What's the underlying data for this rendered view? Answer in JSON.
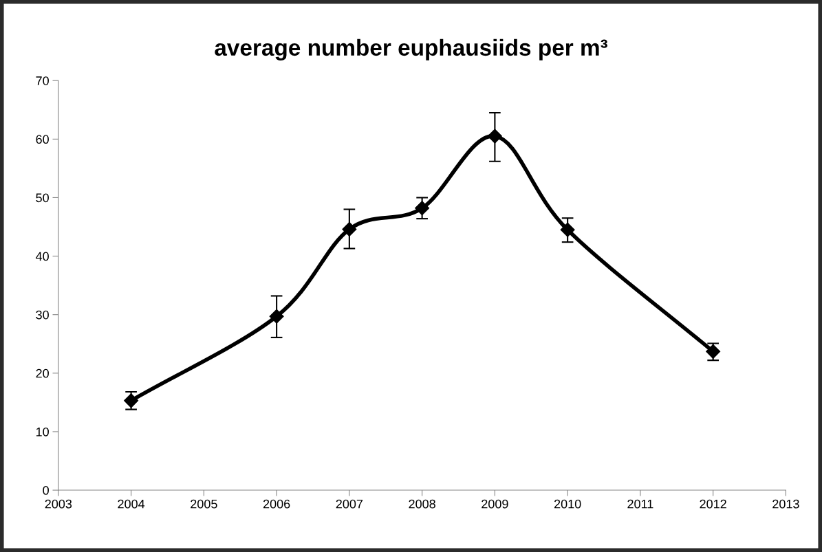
{
  "chart_data": {
    "type": "line",
    "title": "average number euphausiids per m³",
    "x": [
      2004,
      2006,
      2007,
      2008,
      2009,
      2010,
      2012
    ],
    "series": [
      {
        "color": "#000000",
        "values": [
          15.3,
          29.7,
          44.6,
          48.2,
          60.5,
          44.5,
          23.7
        ],
        "errors": [
          [
            13.8,
            16.8
          ],
          [
            26.1,
            33.2
          ],
          [
            41.3,
            48.0
          ],
          [
            46.4,
            50.0
          ],
          [
            56.2,
            64.5
          ],
          [
            42.4,
            46.5
          ],
          [
            22.2,
            25.1
          ]
        ]
      }
    ],
    "marker": "diamond",
    "line_style": "solid",
    "xlim": [
      2003,
      2013
    ],
    "xticks": [
      2003,
      2004,
      2005,
      2006,
      2007,
      2008,
      2009,
      2010,
      2011,
      2012,
      2013
    ],
    "ylim": [
      0,
      70
    ],
    "yticks": [
      0,
      10,
      20,
      30,
      40,
      50,
      60,
      70
    ],
    "grid": false
  }
}
